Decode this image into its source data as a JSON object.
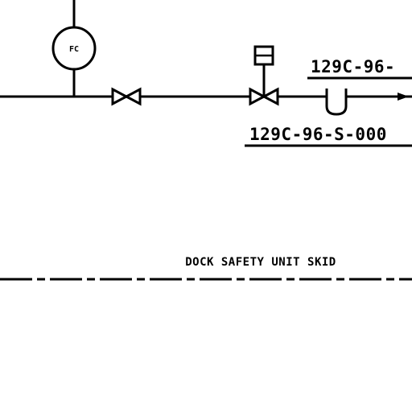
{
  "instrument": {
    "label": "FC"
  },
  "tags": {
    "upper": "129C-96-",
    "lower": "129C-96-S-000"
  },
  "skid_label": "DOCK SAFETY UNIT SKID",
  "colors": {
    "line": "#000000",
    "background": "#ffffff"
  }
}
